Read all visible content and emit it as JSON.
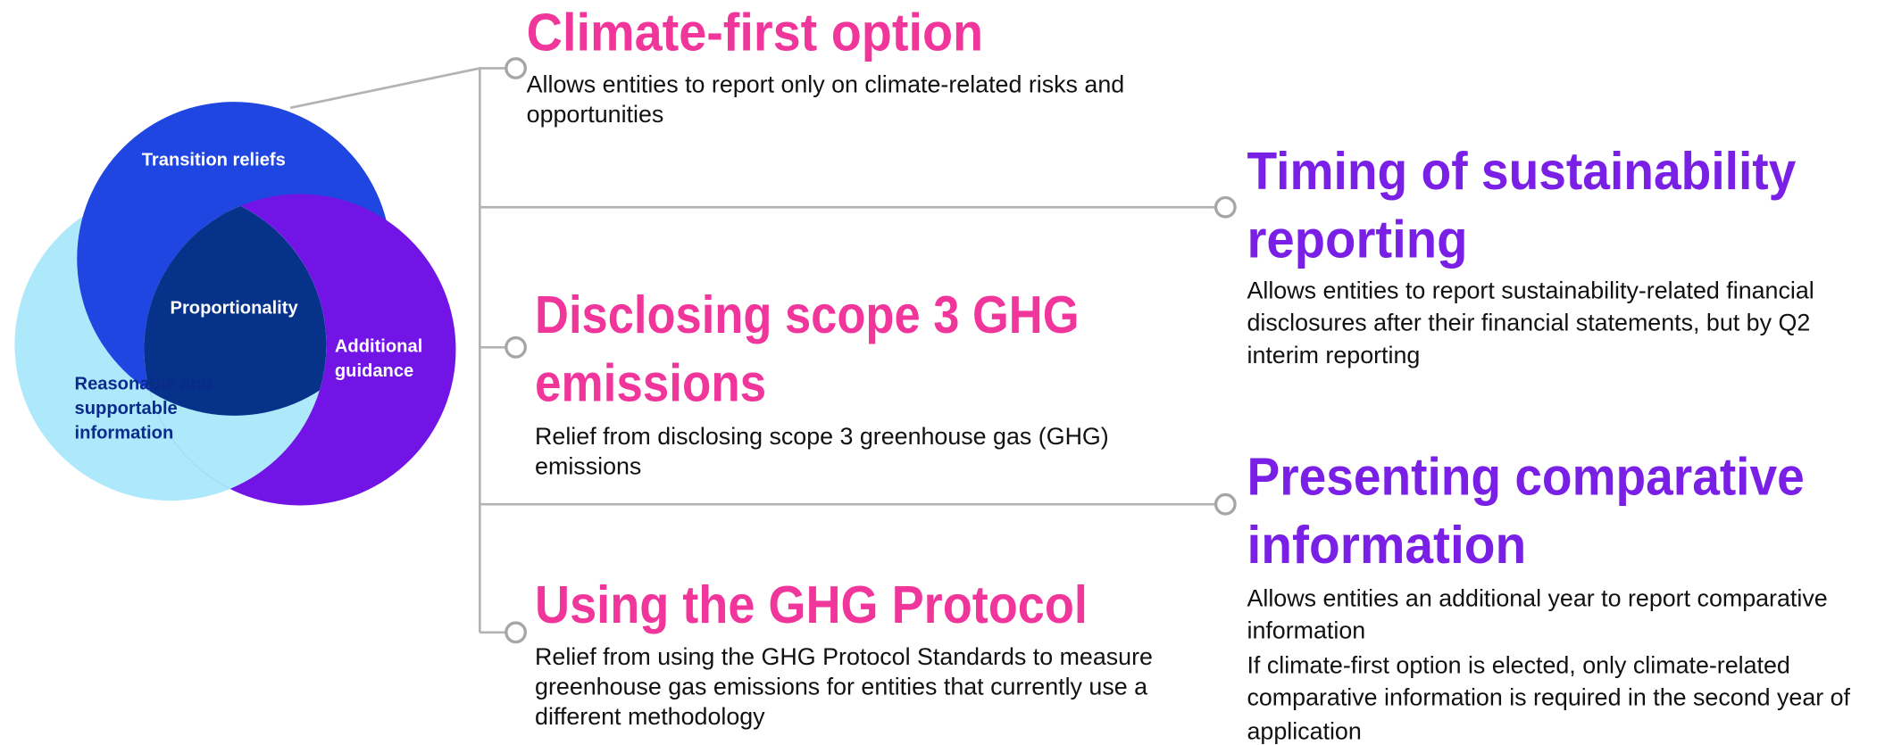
{
  "venn": {
    "labels": [
      {
        "lines": [
          "Transition reliefs"
        ]
      },
      {
        "lines": [
          "Proportionality"
        ]
      },
      {
        "lines": [
          "Additional",
          "guidance"
        ]
      },
      {
        "lines": [
          "Reasonable and",
          "supportable",
          "information"
        ]
      }
    ]
  },
  "items": [
    {
      "title": [
        "Climate-first option"
      ],
      "body": [
        "Allows entities to report only on climate-related risks and",
        "opportunities"
      ]
    },
    {
      "title": [
        "Timing of sustainability",
        "reporting"
      ],
      "body": [
        "Allows entities to report sustainability-related financial",
        "disclosures after their financial statements, but by Q2",
        "interim reporting"
      ]
    },
    {
      "title": [
        "Disclosing scope 3 GHG",
        "emissions"
      ],
      "body": [
        "Relief from disclosing scope 3 greenhouse gas (GHG)",
        "emissions"
      ]
    },
    {
      "title": [
        "Presenting comparative",
        "information"
      ],
      "body": [
        "Allows entities an additional year to report comparative",
        "information",
        "If climate-first option is elected, only climate-related",
        "comparative information is required in the second year of",
        "application"
      ]
    },
    {
      "title": [
        "Using the GHG Protocol"
      ],
      "body": [
        "Relief from using the GHG Protocol Standards to measure",
        "greenhouse gas emissions for entities that currently use a",
        "different methodology"
      ]
    }
  ]
}
